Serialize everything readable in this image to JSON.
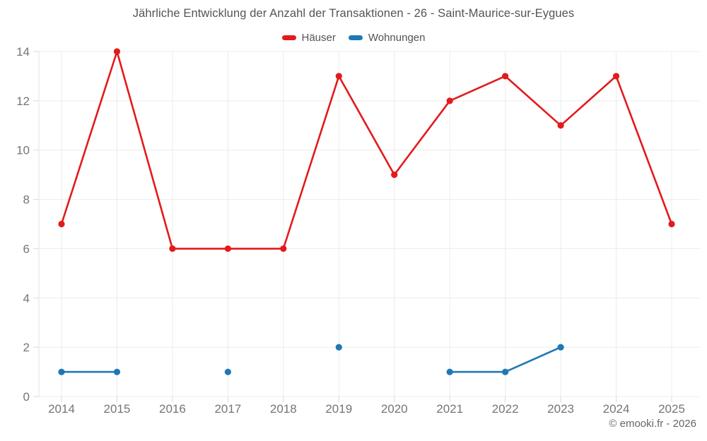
{
  "chart_data": {
    "type": "line",
    "title": "Jährliche Entwicklung der Anzahl der Transaktionen - 26 - Saint-Maurice-sur-Eygues",
    "categories": [
      "2014",
      "2015",
      "2016",
      "2017",
      "2018",
      "2019",
      "2020",
      "2021",
      "2022",
      "2023",
      "2024",
      "2025"
    ],
    "series": [
      {
        "name": "Häuser",
        "color": "#e31a1c",
        "values": [
          7,
          14,
          6,
          6,
          6,
          13,
          9,
          12,
          13,
          11,
          13,
          7
        ]
      },
      {
        "name": "Wohnungen",
        "color": "#1f78b4",
        "values": [
          1,
          1,
          null,
          1,
          null,
          2,
          null,
          1,
          1,
          2,
          null,
          null
        ]
      }
    ],
    "ylim": [
      0,
      14
    ],
    "yticks": [
      0,
      2,
      4,
      6,
      8,
      10,
      12,
      14
    ],
    "grid": true,
    "legend_position": "top"
  },
  "footer": {
    "copyright": "© emooki.fr - 2026"
  }
}
